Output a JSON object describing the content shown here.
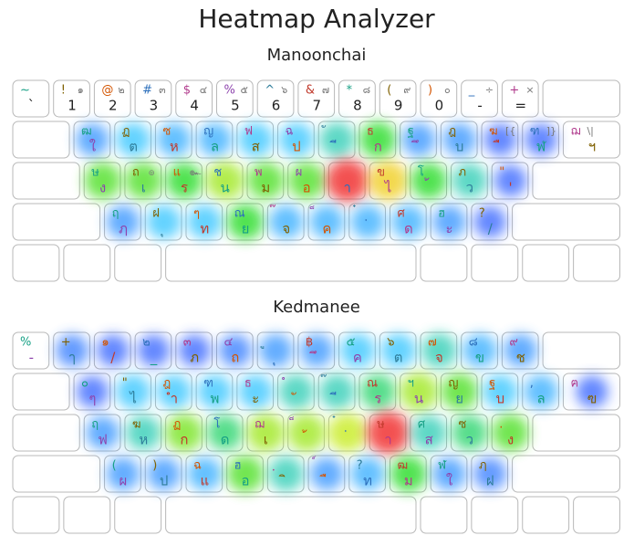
{
  "title": "Heatmap Analyzer",
  "keyboards": [
    {
      "name": "Manoonchai",
      "rows": [
        [
          {
            "shift": "~",
            "base": "`"
          },
          {
            "shift": "!",
            "extra": "๑",
            "base": "1"
          },
          {
            "shift": "@",
            "extra": "๒",
            "base": "2"
          },
          {
            "shift": "#",
            "extra": "๓",
            "base": "3"
          },
          {
            "shift": "$",
            "extra": "๔",
            "base": "4"
          },
          {
            "shift": "%",
            "extra": "๕",
            "base": "5"
          },
          {
            "shift": "^",
            "extra": "๖",
            "base": "6"
          },
          {
            "shift": "&",
            "extra": "๗",
            "base": "7"
          },
          {
            "shift": "*",
            "extra": "๘",
            "base": "8"
          },
          {
            "shift": "(",
            "extra": "๙",
            "base": "9"
          },
          {
            "shift": ")",
            "extra": "๐",
            "base": "0"
          },
          {
            "shift": "_",
            "extra": "÷",
            "base": "-"
          },
          {
            "shift": "+",
            "extra": "×",
            "base": "="
          }
        ],
        [
          {
            "shift": "ฒ",
            "base": "ใ",
            "heat": 0.2
          },
          {
            "shift": "ฏ",
            "base": "ต",
            "heat": 0.3
          },
          {
            "shift": "ซ",
            "base": "ห",
            "heat": 0.25
          },
          {
            "shift": "ญ",
            "base": "ล",
            "heat": 0.25
          },
          {
            "shift": "ฟ",
            "base": "ส",
            "heat": 0.3
          },
          {
            "shift": "ฉ",
            "base": "ป",
            "heat": 0.3
          },
          {
            "shift": "ั",
            "base": "ี",
            "heat": 0.35
          },
          {
            "shift": "ธ",
            "base": "ก",
            "heat": 0.45
          },
          {
            "shift": "ฐ",
            "base": "ึ",
            "heat": 0.2
          },
          {
            "shift": "ฎ",
            "base": "บ",
            "heat": 0.2
          },
          {
            "shift": "ฆ",
            "extra": "[{",
            "base": "ื",
            "heat": 0.1
          },
          {
            "shift": "ฑ",
            "extra": "]}",
            "base": "ฬ",
            "heat": 0.1
          },
          {
            "shift": "ฌ",
            "extra": "\\|",
            "base": "ฯ"
          }
        ],
        [
          {
            "shift": "ษ",
            "base": "ง",
            "heat": 0.5
          },
          {
            "shift": "ถ",
            "extra": "๏",
            "base": "เ",
            "heat": 0.5
          },
          {
            "shift": "แ",
            "extra": "๛",
            "base": "ร",
            "heat": 0.45
          },
          {
            "shift": "ช",
            "base": "น",
            "heat": 0.6
          },
          {
            "shift": "พ",
            "base": "ม",
            "heat": 0.5
          },
          {
            "shift": "ผ",
            "base": "อ",
            "heat": 0.5
          },
          {
            "base": "า",
            "heat": 1.0
          },
          {
            "shift": "ข",
            "base": "ไ",
            "heat": 0.75
          },
          {
            "shift": "โ",
            "base": "้",
            "heat": 0.45
          },
          {
            "shift": "ภ",
            "base": "ว",
            "heat": 0.35
          },
          {
            "shift": "\"",
            "base": "'",
            "heat": 0.1
          }
        ],
        [
          {
            "shift": "ฤ",
            "base": "ฦ",
            "heat": 0.2
          },
          {
            "shift": "ฝ",
            "base": "ุ",
            "heat": 0.3
          },
          {
            "shift": "ๆ",
            "base": "ท",
            "heat": 0.3
          },
          {
            "shift": "ณ",
            "base": "ย",
            "heat": 0.45
          },
          {
            "shift": "๊",
            "base": "จ",
            "heat": 0.25
          },
          {
            "shift": "็",
            "base": "ค",
            "heat": 0.25
          },
          {
            "shift": "๋",
            "base": "่",
            "heat": 0.25
          },
          {
            "shift": "ศ",
            "base": "ด",
            "heat": 0.25
          },
          {
            "shift": "ฮ",
            "base": "ะ",
            "heat": 0.2
          },
          {
            "shift": "?",
            "base": "/",
            "heat": 0.1
          }
        ]
      ]
    },
    {
      "name": "Kedmanee",
      "rows": [
        [
          {
            "shift": "%",
            "base": "-"
          },
          {
            "shift": "+",
            "base": "ๅ",
            "heat": 0.15
          },
          {
            "shift": "๑",
            "base": "/",
            "heat": 0.1
          },
          {
            "shift": "๒",
            "base": "_",
            "heat": 0.1
          },
          {
            "shift": "๓",
            "base": "ภ",
            "heat": 0.1
          },
          {
            "shift": "๔",
            "base": "ถ",
            "heat": 0.15
          },
          {
            "shift": "ู",
            "base": "ุ",
            "heat": 0.2
          },
          {
            "shift": "฿",
            "base": "ึ",
            "heat": 0.2
          },
          {
            "shift": "๕",
            "base": "ค",
            "heat": 0.3
          },
          {
            "shift": "๖",
            "base": "ต",
            "heat": 0.3
          },
          {
            "shift": "๗",
            "base": "จ",
            "heat": 0.35
          },
          {
            "shift": "๘",
            "base": "ข",
            "heat": 0.25
          },
          {
            "shift": "๙",
            "base": "ช",
            "heat": 0.2
          }
        ],
        [
          {
            "shift": "๐",
            "base": "ๆ",
            "heat": 0.1
          },
          {
            "shift": "\"",
            "base": "ไ",
            "heat": 0.3
          },
          {
            "shift": "ฎ",
            "base": "ำ",
            "heat": 0.3
          },
          {
            "shift": "ฑ",
            "base": "พ",
            "heat": 0.3
          },
          {
            "shift": "ธ",
            "base": "ะ",
            "heat": 0.3
          },
          {
            "shift": "ํ",
            "base": "ั",
            "heat": 0.35
          },
          {
            "shift": "๊",
            "base": "ี",
            "heat": 0.35
          },
          {
            "shift": "ณ",
            "base": "ร",
            "heat": 0.4
          },
          {
            "shift": "ฯ",
            "base": "น",
            "heat": 0.6
          },
          {
            "shift": "ญ",
            "base": "ย",
            "heat": 0.5
          },
          {
            "shift": "ฐ",
            "base": "บ",
            "heat": 0.3
          },
          {
            "shift": ",",
            "base": "ล",
            "heat": 0.25
          },
          {
            "shift": "ฅ",
            "base": "ฃ",
            "heat": 0.1
          }
        ],
        [
          {
            "shift": "ฤ",
            "base": "ฟ",
            "heat": 0.2
          },
          {
            "shift": "ฆ",
            "base": "ห",
            "heat": 0.35
          },
          {
            "shift": "ฏ",
            "base": "ก",
            "heat": 0.55
          },
          {
            "shift": "โ",
            "base": "ด",
            "heat": 0.4
          },
          {
            "shift": "ฌ",
            "base": "เ",
            "heat": 0.6
          },
          {
            "shift": "็",
            "base": "้",
            "heat": 0.6
          },
          {
            "shift": "๋",
            "base": "่",
            "heat": 0.65
          },
          {
            "shift": "ษ",
            "base": "า",
            "heat": 1.0
          },
          {
            "shift": "ศ",
            "base": "ส",
            "heat": 0.35
          },
          {
            "shift": "ซ",
            "base": "ว",
            "heat": 0.4
          },
          {
            "shift": ".",
            "base": "ง",
            "heat": 0.5
          }
        ],
        [
          {
            "shift": "(",
            "base": "ผ",
            "heat": 0.2
          },
          {
            "shift": ")",
            "base": "ป",
            "heat": 0.2
          },
          {
            "shift": "ฉ",
            "base": "แ",
            "heat": 0.25
          },
          {
            "shift": "ฮ",
            "base": "อ",
            "heat": 0.5
          },
          {
            "shift": "ฺ",
            "base": "ิ",
            "heat": 0.35
          },
          {
            "shift": "์",
            "base": "ื",
            "heat": 0.2
          },
          {
            "shift": "?",
            "base": "ท",
            "heat": 0.25
          },
          {
            "shift": "ฒ",
            "base": "ม",
            "heat": 0.45
          },
          {
            "shift": "ฬ",
            "base": "ใ",
            "heat": 0.2
          },
          {
            "shift": "ฦ",
            "base": "ฝ",
            "heat": 0.15
          }
        ]
      ]
    }
  ]
}
